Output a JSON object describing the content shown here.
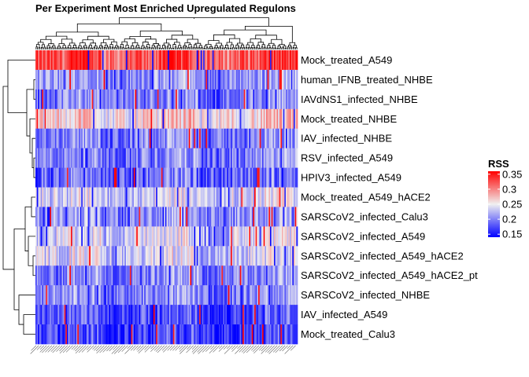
{
  "chart_data": {
    "type": "heatmap",
    "title": "Per Experiment Most Enriched Upregulated Regulons",
    "rows": [
      "Mock_treated_A549",
      "human_IFNB_treated_NHBE",
      "IAVdNS1_infected_NHBE",
      "Mock_treated_NHBE",
      "IAV_infected_NHBE",
      "RSV_infected_A549",
      "HPIV3_infected_A549",
      "Mock_treated_A549_hACE2",
      "SARSCoV2_infected_Calu3",
      "SARSCoV2_infected_A549",
      "SARSCoV2_infected_A549_hACE2",
      "SARSCoV2_infected_A549_hACE2_pt",
      "SARSCoV2_infected_NHBE",
      "IAV_infected_A549",
      "Mock_treated_Calu3"
    ],
    "row_level_rss": [
      0.32,
      0.21,
      0.2,
      0.26,
      0.2,
      0.2,
      0.19,
      0.235,
      0.21,
      0.235,
      0.235,
      0.2,
      0.2,
      0.175,
      0.17
    ],
    "column_count": 200,
    "column_labels_note": "regulon names (illegible, rotated 45°)",
    "legend": {
      "title": "RSS",
      "ticks": [
        "0.35",
        "0.3",
        "0.25",
        "0.2",
        "0.15"
      ],
      "tick_values": [
        0.35,
        0.3,
        0.25,
        0.2,
        0.15
      ],
      "range": [
        0.14,
        0.36
      ],
      "colors": {
        "low": "#0000ff",
        "mid": "#f0f0f0",
        "high": "#ff0000"
      }
    }
  }
}
